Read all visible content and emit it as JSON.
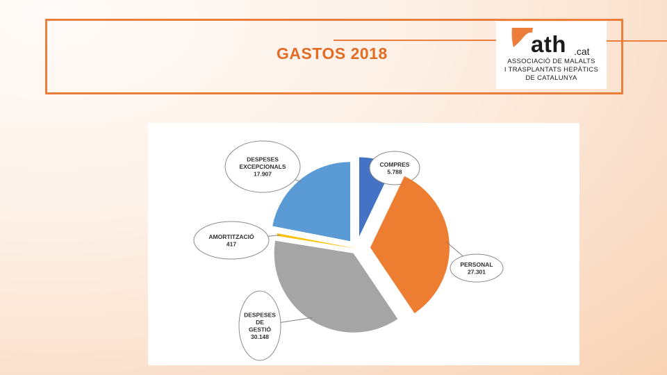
{
  "title": "GASTOS 2018",
  "colors": {
    "accent": "#ec7d3b",
    "title": "#e36c24"
  },
  "logo": {
    "wordmark": "ath",
    "suffix": ".cat",
    "tagline": [
      "ASSOCIACIÓ DE MALALTS",
      "I TRASPLANTATS HEPÀTICS",
      "DE CATALUNYA"
    ]
  },
  "chart_data": {
    "type": "pie",
    "title": "",
    "slices": [
      {
        "label": "COMPRES",
        "value": 5788,
        "display": "5.788",
        "label_lines": [
          "COMPRES",
          "5.788"
        ],
        "color": "#4472c4"
      },
      {
        "label": "PERSONAL",
        "value": 27301,
        "display": "27.301",
        "label_lines": [
          "PERSONAL",
          "27.301"
        ],
        "color": "#ed7d31"
      },
      {
        "label": "DESPESES DE GESTIÓ",
        "value": 30148,
        "display": "30.148",
        "label_lines": [
          "DESPESES",
          "DE",
          "GESTIÓ",
          "30.148"
        ],
        "color": "#a5a5a5"
      },
      {
        "label": "AMORTITZACIÓ",
        "value": 417,
        "display": "417",
        "label_lines": [
          "AMORTITZACIÓ",
          "417"
        ],
        "color": "#ffc000"
      },
      {
        "label": "DESPESES EXCEPCIONALS",
        "value": 17907,
        "display": "17.907",
        "label_lines": [
          "DESPESES",
          "EXCEPCIONALS",
          "17.907"
        ],
        "color": "#5b9bd5"
      }
    ],
    "legend": "none",
    "data_labels": "callouts"
  }
}
